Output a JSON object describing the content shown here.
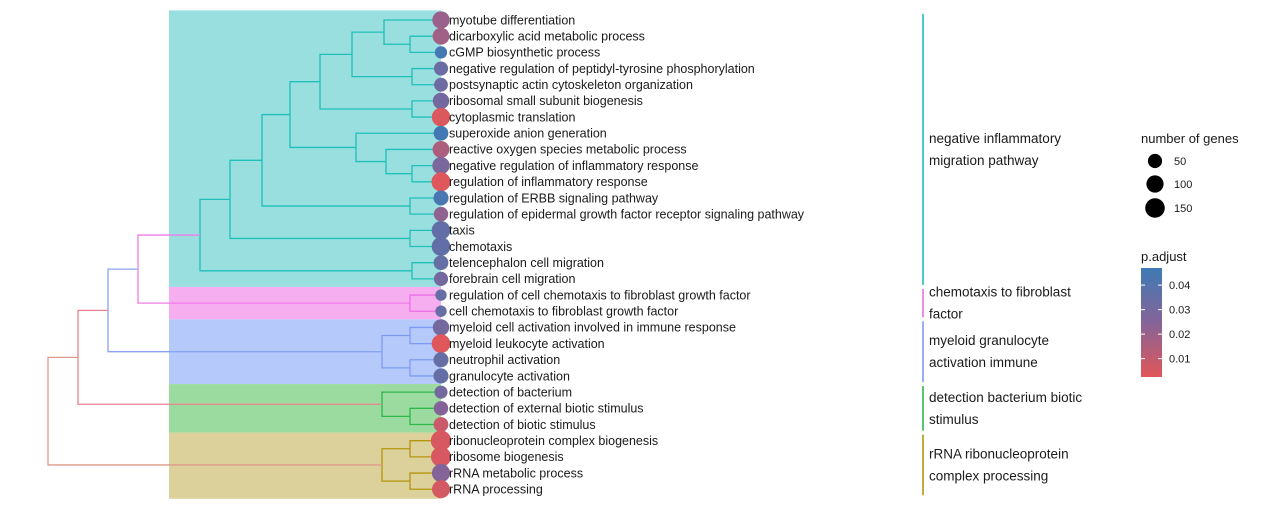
{
  "chart_data": {
    "type": "treeplot",
    "terms": [
      {
        "name": "myotube differentiation",
        "count": 120,
        "padj": 0.02,
        "cluster": 0
      },
      {
        "name": "dicarboxylic acid metabolic process",
        "count": 110,
        "padj": 0.018,
        "cluster": 0
      },
      {
        "name": "cGMP biosynthetic process",
        "count": 35,
        "padj": 0.045,
        "cluster": 0
      },
      {
        "name": "negative regulation of peptidyl-tyrosine phosphorylation",
        "count": 60,
        "padj": 0.033,
        "cluster": 0
      },
      {
        "name": "postsynaptic actin cytoskeleton organization",
        "count": 55,
        "padj": 0.032,
        "cluster": 0
      },
      {
        "name": "ribosomal small subunit biogenesis",
        "count": 100,
        "padj": 0.03,
        "cluster": 0
      },
      {
        "name": "cytoplasmic translation",
        "count": 145,
        "padj": 0.004,
        "cluster": 0
      },
      {
        "name": "superoxide anion generation",
        "count": 70,
        "padj": 0.046,
        "cluster": 0
      },
      {
        "name": "reactive oxygen species metabolic process",
        "count": 110,
        "padj": 0.015,
        "cluster": 0
      },
      {
        "name": "negative regulation of inflammatory response",
        "count": 120,
        "padj": 0.028,
        "cluster": 0
      },
      {
        "name": "regulation of inflammatory response",
        "count": 160,
        "padj": 0.003,
        "cluster": 0
      },
      {
        "name": "regulation of ERBB signaling pathway",
        "count": 75,
        "padj": 0.044,
        "cluster": 0
      },
      {
        "name": "regulation of epidermal growth factor receptor signaling pathway",
        "count": 65,
        "padj": 0.022,
        "cluster": 0
      },
      {
        "name": "taxis",
        "count": 150,
        "padj": 0.036,
        "cluster": 0
      },
      {
        "name": "chemotaxis",
        "count": 150,
        "padj": 0.036,
        "cluster": 0
      },
      {
        "name": "telencephalon cell migration",
        "count": 70,
        "padj": 0.035,
        "cluster": 0
      },
      {
        "name": "forebrain cell migration",
        "count": 60,
        "padj": 0.03,
        "cluster": 0
      },
      {
        "name": "regulation of cell chemotaxis to fibroblast growth factor",
        "count": 25,
        "padj": 0.035,
        "cluster": 1
      },
      {
        "name": "cell chemotaxis to fibroblast growth factor",
        "count": 25,
        "padj": 0.035,
        "cluster": 1
      },
      {
        "name": "myeloid cell activation involved in immune response",
        "count": 100,
        "padj": 0.03,
        "cluster": 2
      },
      {
        "name": "myeloid leukocyte activation",
        "count": 150,
        "padj": 0.003,
        "cluster": 2
      },
      {
        "name": "neutrophil activation",
        "count": 75,
        "padj": 0.035,
        "cluster": 2
      },
      {
        "name": "granulocyte activation",
        "count": 75,
        "padj": 0.035,
        "cluster": 2
      },
      {
        "name": "detection of bacterium",
        "count": 45,
        "padj": 0.03,
        "cluster": 3
      },
      {
        "name": "detection of external biotic stimulus",
        "count": 65,
        "padj": 0.025,
        "cluster": 3
      },
      {
        "name": "detection of biotic stimulus",
        "count": 70,
        "padj": 0.008,
        "cluster": 3
      },
      {
        "name": "ribonucleoprotein complex biogenesis",
        "count": 195,
        "padj": 0.005,
        "cluster": 4
      },
      {
        "name": "ribosome biogenesis",
        "count": 185,
        "padj": 0.005,
        "cluster": 4
      },
      {
        "name": "rRNA metabolic process",
        "count": 140,
        "padj": 0.025,
        "cluster": 4
      },
      {
        "name": "rRNA processing",
        "count": 135,
        "padj": 0.006,
        "cluster": 4
      }
    ],
    "clusters": [
      {
        "label_lines": [
          "negative inflammatory",
          "migration pathway"
        ],
        "color": "#1fc0b8",
        "fill": "#9adfe0"
      },
      {
        "label_lines": [
          "chemotaxis to fibroblast",
          "factor"
        ],
        "color": "#ea6fe6",
        "fill": "#f7aef1"
      },
      {
        "label_lines": [
          "myeloid granulocyte",
          "activation immune"
        ],
        "color": "#7f9af5",
        "fill": "#b5c9fb"
      },
      {
        "label_lines": [
          "detection bacterium biotic",
          "stimulus"
        ],
        "color": "#2eb84c",
        "fill": "#9bdba0"
      },
      {
        "label_lines": [
          "rRNA ribonucleoprotein",
          "complex processing"
        ],
        "color": "#b5960f",
        "fill": "#ddd19b"
      }
    ],
    "legend_size": {
      "title": "number of genes",
      "values": [
        50,
        100,
        150
      ]
    },
    "legend_color": {
      "title": "p.adjust",
      "ticks": [
        "0.04",
        "0.03",
        "0.02",
        "0.01"
      ],
      "tick_values": [
        0.04,
        0.03,
        0.02,
        0.01
      ],
      "range": [
        0.0025,
        0.047
      ],
      "color_low": "#e15759",
      "color_high": "#3f7ab5"
    }
  }
}
